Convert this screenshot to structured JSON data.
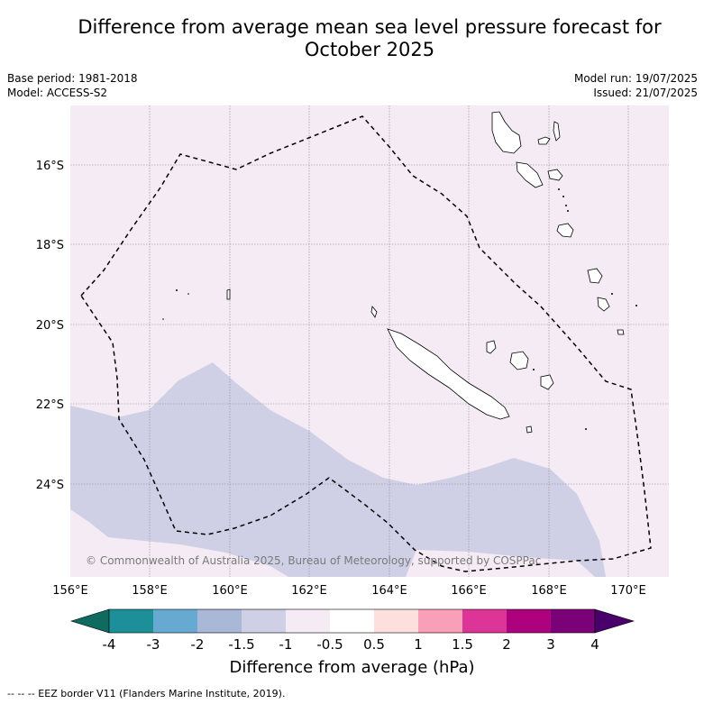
{
  "title_line1": "Difference from average mean sea level pressure forecast for",
  "title_line2": "October 2025",
  "base_period": "Base period: 1981-2018",
  "model": "Model: ACCESS-S2",
  "model_run": "Model run: 19/07/2025",
  "issued": "Issued: 21/07/2025",
  "copyright": "© Commonwealth of Australia 2025, Bureau of Meteorology, supported by COSPPac",
  "lon_labels": [
    "156°E",
    "158°E",
    "160°E",
    "162°E",
    "164°E",
    "166°E",
    "168°E",
    "170°E"
  ],
  "lat_labels": [
    "16°S",
    "18°S",
    "20°S",
    "22°S",
    "24°S"
  ],
  "colorbar": {
    "ticks": [
      "-4",
      "-3",
      "-2",
      "-1.5",
      "-1",
      "-0.5",
      "0.5",
      "1",
      "1.5",
      "2",
      "3",
      "4"
    ],
    "title": "Difference from average (hPa)",
    "colors": {
      "below_min": "#0f6b5f",
      "bins": [
        "#1d8f99",
        "#66a9d1",
        "#aab8d7",
        "#cfd0e6",
        "#f4ebf4",
        "#ffffff",
        "#fde0dd",
        "#f99fb7",
        "#dd3497",
        "#ae017e",
        "#7a0177"
      ],
      "above_max": "#49006a"
    }
  },
  "footnote": "--  --  -- EEZ border V11 (Flanders Marine Institute, 2019).",
  "map_colors": {
    "background": "#f4ebf4",
    "anomaly_fill": "#cfd0e6",
    "grid": "#888888",
    "eez": "#000000",
    "coast": "#000000"
  }
}
